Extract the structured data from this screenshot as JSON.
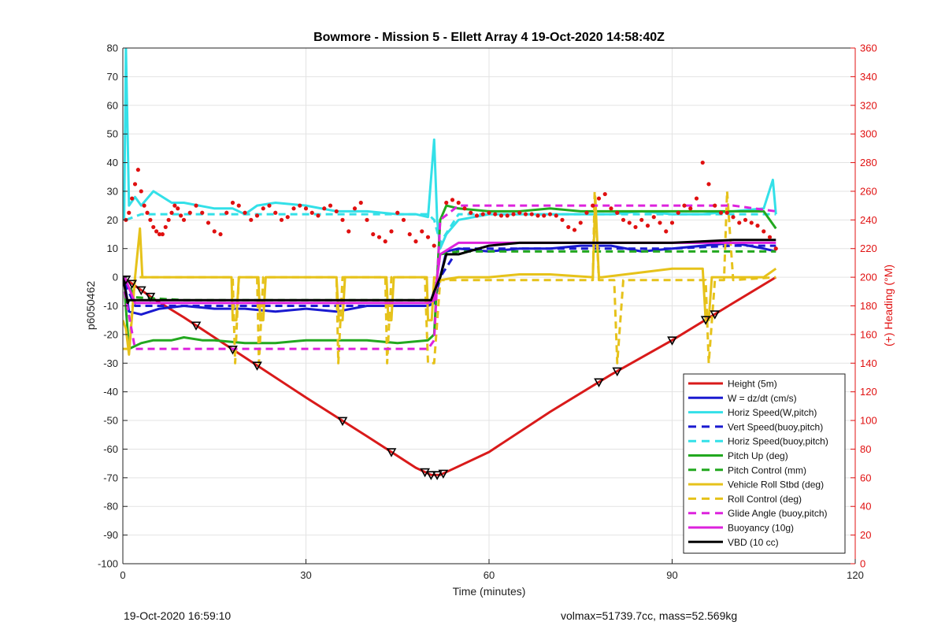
{
  "chart_data": {
    "type": "line",
    "title": "Bowmore - Mission 5 - Ellett Array 4 19-Oct-2020 14:58:40Z",
    "xlabel": "Time (minutes)",
    "ylabel": "p6050462",
    "y2label": "(+) Heading (°M)",
    "xlim": [
      0,
      120
    ],
    "ylim": [
      -100,
      80
    ],
    "y2lim": [
      0,
      360
    ],
    "xticks": [
      0,
      30,
      60,
      90,
      120
    ],
    "yticks": [
      -100,
      -90,
      -80,
      -70,
      -60,
      -50,
      -40,
      -30,
      -20,
      -10,
      0,
      10,
      20,
      30,
      40,
      50,
      60,
      70,
      80
    ],
    "y2ticks": [
      0,
      20,
      40,
      60,
      80,
      100,
      120,
      140,
      160,
      180,
      200,
      220,
      240,
      260,
      280,
      300,
      320,
      340,
      360
    ],
    "grid": true,
    "legend_position": "bottom-right",
    "colors": {
      "red": "#d91a1a",
      "blue": "#1a1ad0",
      "cyan": "#33e0e8",
      "green": "#22a81f",
      "yellow": "#e6c21a",
      "magenta": "#dd22dd",
      "black": "#000000",
      "heading": "#e01010"
    },
    "series": [
      {
        "name": "Height (5m)",
        "color": "#d91a1a",
        "style": "solid",
        "x": [
          0,
          5,
          10,
          20,
          30,
          40,
          48,
          50.5,
          52,
          55,
          60,
          70,
          80,
          90,
          100,
          107
        ],
        "y": [
          0,
          -7.5,
          -14,
          -28,
          -42,
          -55.5,
          -66.5,
          -69,
          -69,
          -66,
          -61,
          -47,
          -34,
          -22,
          -9,
          0
        ]
      },
      {
        "name": "W = dz/dt (cm/s)",
        "color": "#1a1ad0",
        "style": "solid",
        "x": [
          0.3,
          1,
          3,
          6,
          10,
          15,
          20,
          25,
          30,
          35,
          40,
          45,
          50,
          51,
          52,
          53,
          55,
          60,
          65,
          70,
          75,
          80,
          85,
          90,
          95,
          100,
          105,
          107
        ],
        "y": [
          -2,
          -12,
          -13,
          -11,
          -10,
          -11,
          -11,
          -12,
          -11,
          -12,
          -10,
          -10,
          -10,
          -9,
          0,
          9,
          10,
          9,
          10,
          10,
          11,
          11,
          9,
          10,
          11,
          12,
          10,
          9
        ]
      },
      {
        "name": "Horiz Speed(W,pitch)",
        "color": "#33e0e8",
        "style": "solid",
        "x": [
          0.2,
          0.5,
          1,
          2,
          3,
          5,
          8,
          10,
          15,
          18,
          20,
          22,
          25,
          30,
          35,
          40,
          45,
          48,
          50,
          51,
          51.5,
          52,
          53,
          55,
          60,
          65,
          70,
          75,
          80,
          85,
          90,
          95,
          100,
          105,
          106.5,
          107
        ],
        "y": [
          20,
          80,
          25,
          28,
          25,
          30,
          26,
          26,
          24,
          24,
          22,
          25,
          26,
          25,
          23,
          23,
          22,
          22,
          21,
          48,
          20,
          10,
          15,
          20,
          22,
          22,
          22,
          22,
          22,
          23,
          22,
          22,
          23,
          24,
          34,
          22
        ]
      },
      {
        "name": "Vert Speed(buoy,pitch)",
        "color": "#1a1ad0",
        "style": "dashed",
        "x": [
          0.3,
          2,
          10,
          20,
          30,
          40,
          50,
          51,
          52,
          55,
          60,
          70,
          80,
          90,
          100,
          107
        ],
        "y": [
          -2,
          -10,
          -10,
          -10,
          -10,
          -10,
          -10,
          -9,
          0,
          10,
          10,
          10,
          10,
          10,
          11,
          11
        ]
      },
      {
        "name": "Horiz Speed(buoy,pitch)",
        "color": "#33e0e8",
        "style": "dashed",
        "x": [
          0.5,
          3,
          10,
          20,
          30,
          40,
          50,
          51,
          52,
          55,
          60,
          70,
          80,
          90,
          100,
          107
        ],
        "y": [
          20,
          22,
          22,
          22,
          22,
          22,
          22,
          20,
          12,
          22,
          22,
          22,
          22,
          22,
          22,
          22
        ]
      },
      {
        "name": "Pitch Up (deg)",
        "color": "#22a81f",
        "style": "solid",
        "x": [
          0.3,
          1,
          3,
          5,
          8,
          10,
          13,
          15,
          20,
          25,
          30,
          35,
          40,
          45,
          50,
          51,
          52,
          53,
          55,
          60,
          65,
          70,
          75,
          80,
          85,
          90,
          95,
          100,
          105,
          107
        ],
        "y": [
          -5,
          -25,
          -23,
          -22,
          -22,
          -21,
          -22,
          -22,
          -23,
          -23,
          -22,
          -22,
          -22,
          -23,
          -22,
          -20,
          20,
          25,
          24,
          23,
          23,
          24,
          23,
          23,
          23,
          23,
          23,
          23,
          23,
          17
        ]
      },
      {
        "name": "Pitch Control (mm)",
        "color": "#22a81f",
        "style": "dashed",
        "x": [
          0.3,
          2,
          10,
          20,
          30,
          40,
          50,
          51,
          52,
          55,
          60,
          70,
          80,
          90,
          100,
          107
        ],
        "y": [
          0,
          -7,
          -8,
          -8,
          -8,
          -8,
          -8,
          -7,
          8,
          9,
          9,
          9,
          9,
          9,
          9,
          9
        ]
      },
      {
        "name": "Vehicle Roll Stbd (deg)",
        "color": "#e6c21a",
        "style": "solid",
        "x": [
          0,
          0.5,
          1,
          2,
          2.8,
          3.2,
          4,
          5,
          10,
          15,
          17.8,
          18,
          18.6,
          19,
          22.2,
          22.5,
          23,
          23.4,
          35,
          35.4,
          36,
          36.4,
          43.2,
          43.5,
          44,
          44.4,
          49.8,
          50,
          50.6,
          51,
          52,
          55,
          60,
          65,
          70,
          77,
          77.4,
          78,
          78.5,
          90,
          95,
          95.5,
          96,
          96.5,
          100,
          105,
          107
        ],
        "y": [
          -15,
          -18,
          -27,
          0,
          17,
          0,
          0,
          0,
          0,
          0,
          0,
          -15,
          -15,
          0,
          0,
          -15,
          -15,
          0,
          0,
          -15,
          -15,
          0,
          0,
          -15,
          -15,
          0,
          0,
          -15,
          -15,
          0,
          -1,
          0,
          0,
          1,
          1,
          0,
          28,
          0,
          0,
          3,
          3,
          -15,
          -15,
          0,
          0,
          0,
          3
        ]
      },
      {
        "name": "Roll Control (deg)",
        "color": "#e6c21a",
        "style": "dashed",
        "x": [
          0,
          1,
          2,
          3,
          5,
          10,
          18,
          18.4,
          19,
          22,
          22.3,
          23,
          35,
          35.3,
          36,
          43,
          43.3,
          44,
          49.5,
          50,
          51,
          52,
          55,
          60,
          77,
          77.3,
          78,
          80.5,
          81,
          82,
          90,
          95.5,
          96,
          97,
          98.5,
          99,
          100,
          107
        ],
        "y": [
          -25,
          -25,
          0,
          0,
          0,
          0,
          0,
          -30,
          0,
          0,
          -30,
          0,
          0,
          -30,
          0,
          0,
          -30,
          0,
          0,
          -30,
          -30,
          -1,
          -1,
          -1,
          -1,
          30,
          -1,
          -1,
          -30,
          -1,
          -1,
          -1,
          -30,
          -1,
          -1,
          30,
          -1,
          0
        ]
      },
      {
        "name": "Glide Angle (buoy,pitch)",
        "color": "#dd22dd",
        "style": "dashed",
        "x": [
          0.3,
          2,
          5,
          10,
          20,
          30,
          40,
          50,
          51,
          52,
          55,
          60,
          70,
          80,
          90,
          100,
          107
        ],
        "y": [
          -5,
          -25,
          -25,
          -25,
          -25,
          -25,
          -25,
          -25,
          -22,
          20,
          25,
          25,
          25,
          25,
          25,
          25,
          23
        ]
      },
      {
        "name": "Buoyancy (10g)",
        "color": "#dd22dd",
        "style": "solid",
        "x": [
          0.3,
          2,
          10,
          20,
          30,
          40,
          50,
          51,
          52,
          55,
          60,
          70,
          80,
          90,
          100,
          107
        ],
        "y": [
          0,
          -9,
          -9,
          -9,
          -9,
          -9,
          -9,
          -8,
          8,
          12,
          12,
          12,
          12,
          12,
          12,
          12
        ]
      },
      {
        "name": "VBD (10 cc)",
        "color": "#000000",
        "style": "solid",
        "x": [
          0,
          0.8,
          1,
          10,
          20,
          30,
          40,
          50.5,
          51,
          52,
          53,
          55,
          60,
          65,
          70,
          80,
          90,
          100,
          107
        ],
        "y": [
          0,
          -9,
          -8,
          -8,
          -8,
          -8,
          -8,
          -8,
          -5,
          0,
          8,
          8,
          11,
          12,
          12,
          12,
          12,
          13,
          13
        ]
      }
    ],
    "heading": {
      "name": "(+) Heading (°M)",
      "axis": "right",
      "color": "#e01010",
      "style": "dots",
      "x": [
        0.5,
        1,
        1.5,
        2,
        2.5,
        3,
        3.5,
        4,
        4.5,
        5,
        5.5,
        6,
        6.5,
        7,
        7.5,
        8,
        8.5,
        9,
        9.5,
        10,
        11,
        12,
        13,
        14,
        15,
        16,
        17,
        18,
        19,
        20,
        21,
        22,
        23,
        24,
        25,
        26,
        27,
        28,
        29,
        30,
        31,
        32,
        33,
        34,
        35,
        36,
        37,
        38,
        39,
        40,
        41,
        42,
        43,
        44,
        45,
        46,
        47,
        48,
        49,
        50,
        51,
        53,
        54,
        55,
        56,
        57,
        58,
        59,
        60,
        61,
        62,
        63,
        64,
        65,
        66,
        67,
        68,
        69,
        70,
        71,
        72,
        73,
        74,
        75,
        76,
        77,
        78,
        79,
        80,
        81,
        82,
        83,
        84,
        85,
        86,
        87,
        88,
        89,
        90,
        91,
        92,
        93,
        94,
        95,
        96,
        97,
        98,
        99,
        100,
        101,
        102,
        103,
        104,
        105,
        106,
        107
      ],
      "y": [
        240,
        245,
        255,
        265,
        275,
        260,
        250,
        245,
        240,
        235,
        232,
        230,
        230,
        235,
        240,
        245,
        250,
        248,
        243,
        240,
        245,
        250,
        245,
        238,
        232,
        230,
        245,
        252,
        250,
        245,
        240,
        243,
        248,
        250,
        245,
        240,
        242,
        248,
        250,
        248,
        245,
        243,
        248,
        250,
        246,
        240,
        232,
        248,
        252,
        240,
        230,
        228,
        225,
        232,
        245,
        240,
        230,
        225,
        232,
        228,
        222,
        252,
        254,
        252,
        248,
        245,
        243,
        244,
        245,
        244,
        243,
        243,
        244,
        245,
        244,
        244,
        243,
        243,
        244,
        243,
        240,
        235,
        233,
        238,
        245,
        250,
        255,
        258,
        248,
        245,
        240,
        238,
        235,
        240,
        236,
        242,
        238,
        232,
        238,
        245,
        250,
        248,
        255,
        280,
        265,
        250,
        245,
        245,
        242,
        238,
        240,
        238,
        236,
        232,
        228,
        220
      ]
    },
    "markers": {
      "series": "Height (5m)",
      "style": "hollow-triangle",
      "x": [
        0.5,
        1.5,
        3,
        4.5,
        12,
        18,
        22,
        36,
        44,
        49.5,
        50.5,
        51.5,
        52.5,
        78,
        81,
        90,
        95.5,
        97
      ]
    },
    "footer_left": "19-Oct-2020 16:59:10",
    "footer_right": "volmax=51739.7cc, mass=52.569kg"
  }
}
